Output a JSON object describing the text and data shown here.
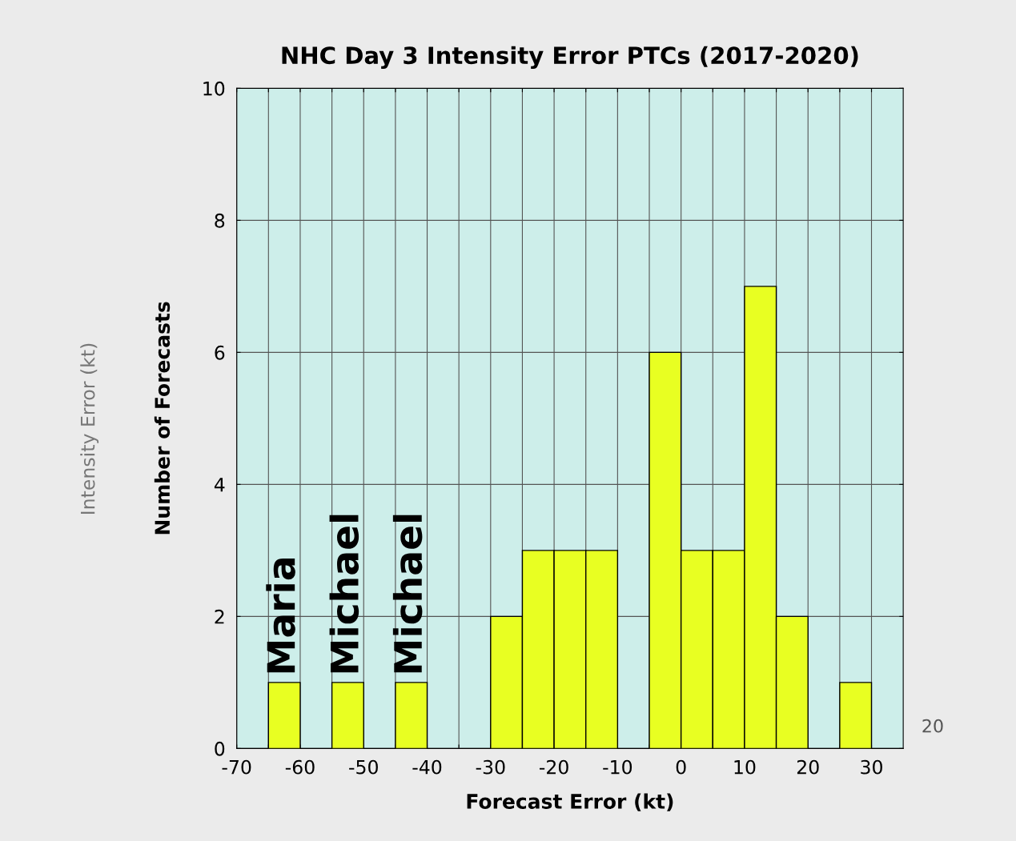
{
  "chart_data": {
    "type": "histogram",
    "title": "NHC Day 3 Intensity Error PTCs (2017-2020)",
    "xlabel": "Forecast Error (kt)",
    "ylabel": "Number of Forecasts",
    "bins": [
      -70,
      -65,
      -60,
      -55,
      -50,
      -45,
      -40,
      -35,
      -30,
      -25,
      -20,
      -15,
      -10,
      -5,
      0,
      5,
      10,
      15,
      20,
      25,
      30,
      35
    ],
    "values": [
      0,
      1,
      0,
      1,
      0,
      1,
      0,
      0,
      2,
      3,
      3,
      3,
      0,
      6,
      3,
      3,
      7,
      2,
      0,
      1,
      0
    ],
    "color": "#e8ff22",
    "xlim": [
      -70,
      35
    ],
    "xticks": [
      -70,
      {
        "value": -65,
        "label": null
      },
      -60,
      {
        "value": -55,
        "label": null
      },
      -50,
      {
        "value": -45,
        "label": null
      },
      -40,
      {
        "value": -35,
        "label": null
      },
      -30,
      {
        "value": -25,
        "label": null
      },
      -20,
      {
        "value": -15,
        "label": null
      },
      -10,
      {
        "value": -5,
        "label": null
      },
      0,
      {
        "value": 5,
        "label": null
      },
      10,
      {
        "value": 15,
        "label": null
      },
      20,
      {
        "value": 25,
        "label": null
      },
      30
    ],
    "ylim": [
      0,
      10
    ],
    "yticks": [
      0,
      2,
      4,
      6,
      8,
      10
    ],
    "grid": true,
    "annotations": [
      {
        "text": "Maria",
        "x": -62.5,
        "y": 1
      },
      {
        "text": "Michael",
        "x": -52.5,
        "y": 1
      },
      {
        "text": "Michael",
        "x": -42.5,
        "y": 1
      },
      "Intensity Error (kt)",
      "20"
    ]
  }
}
